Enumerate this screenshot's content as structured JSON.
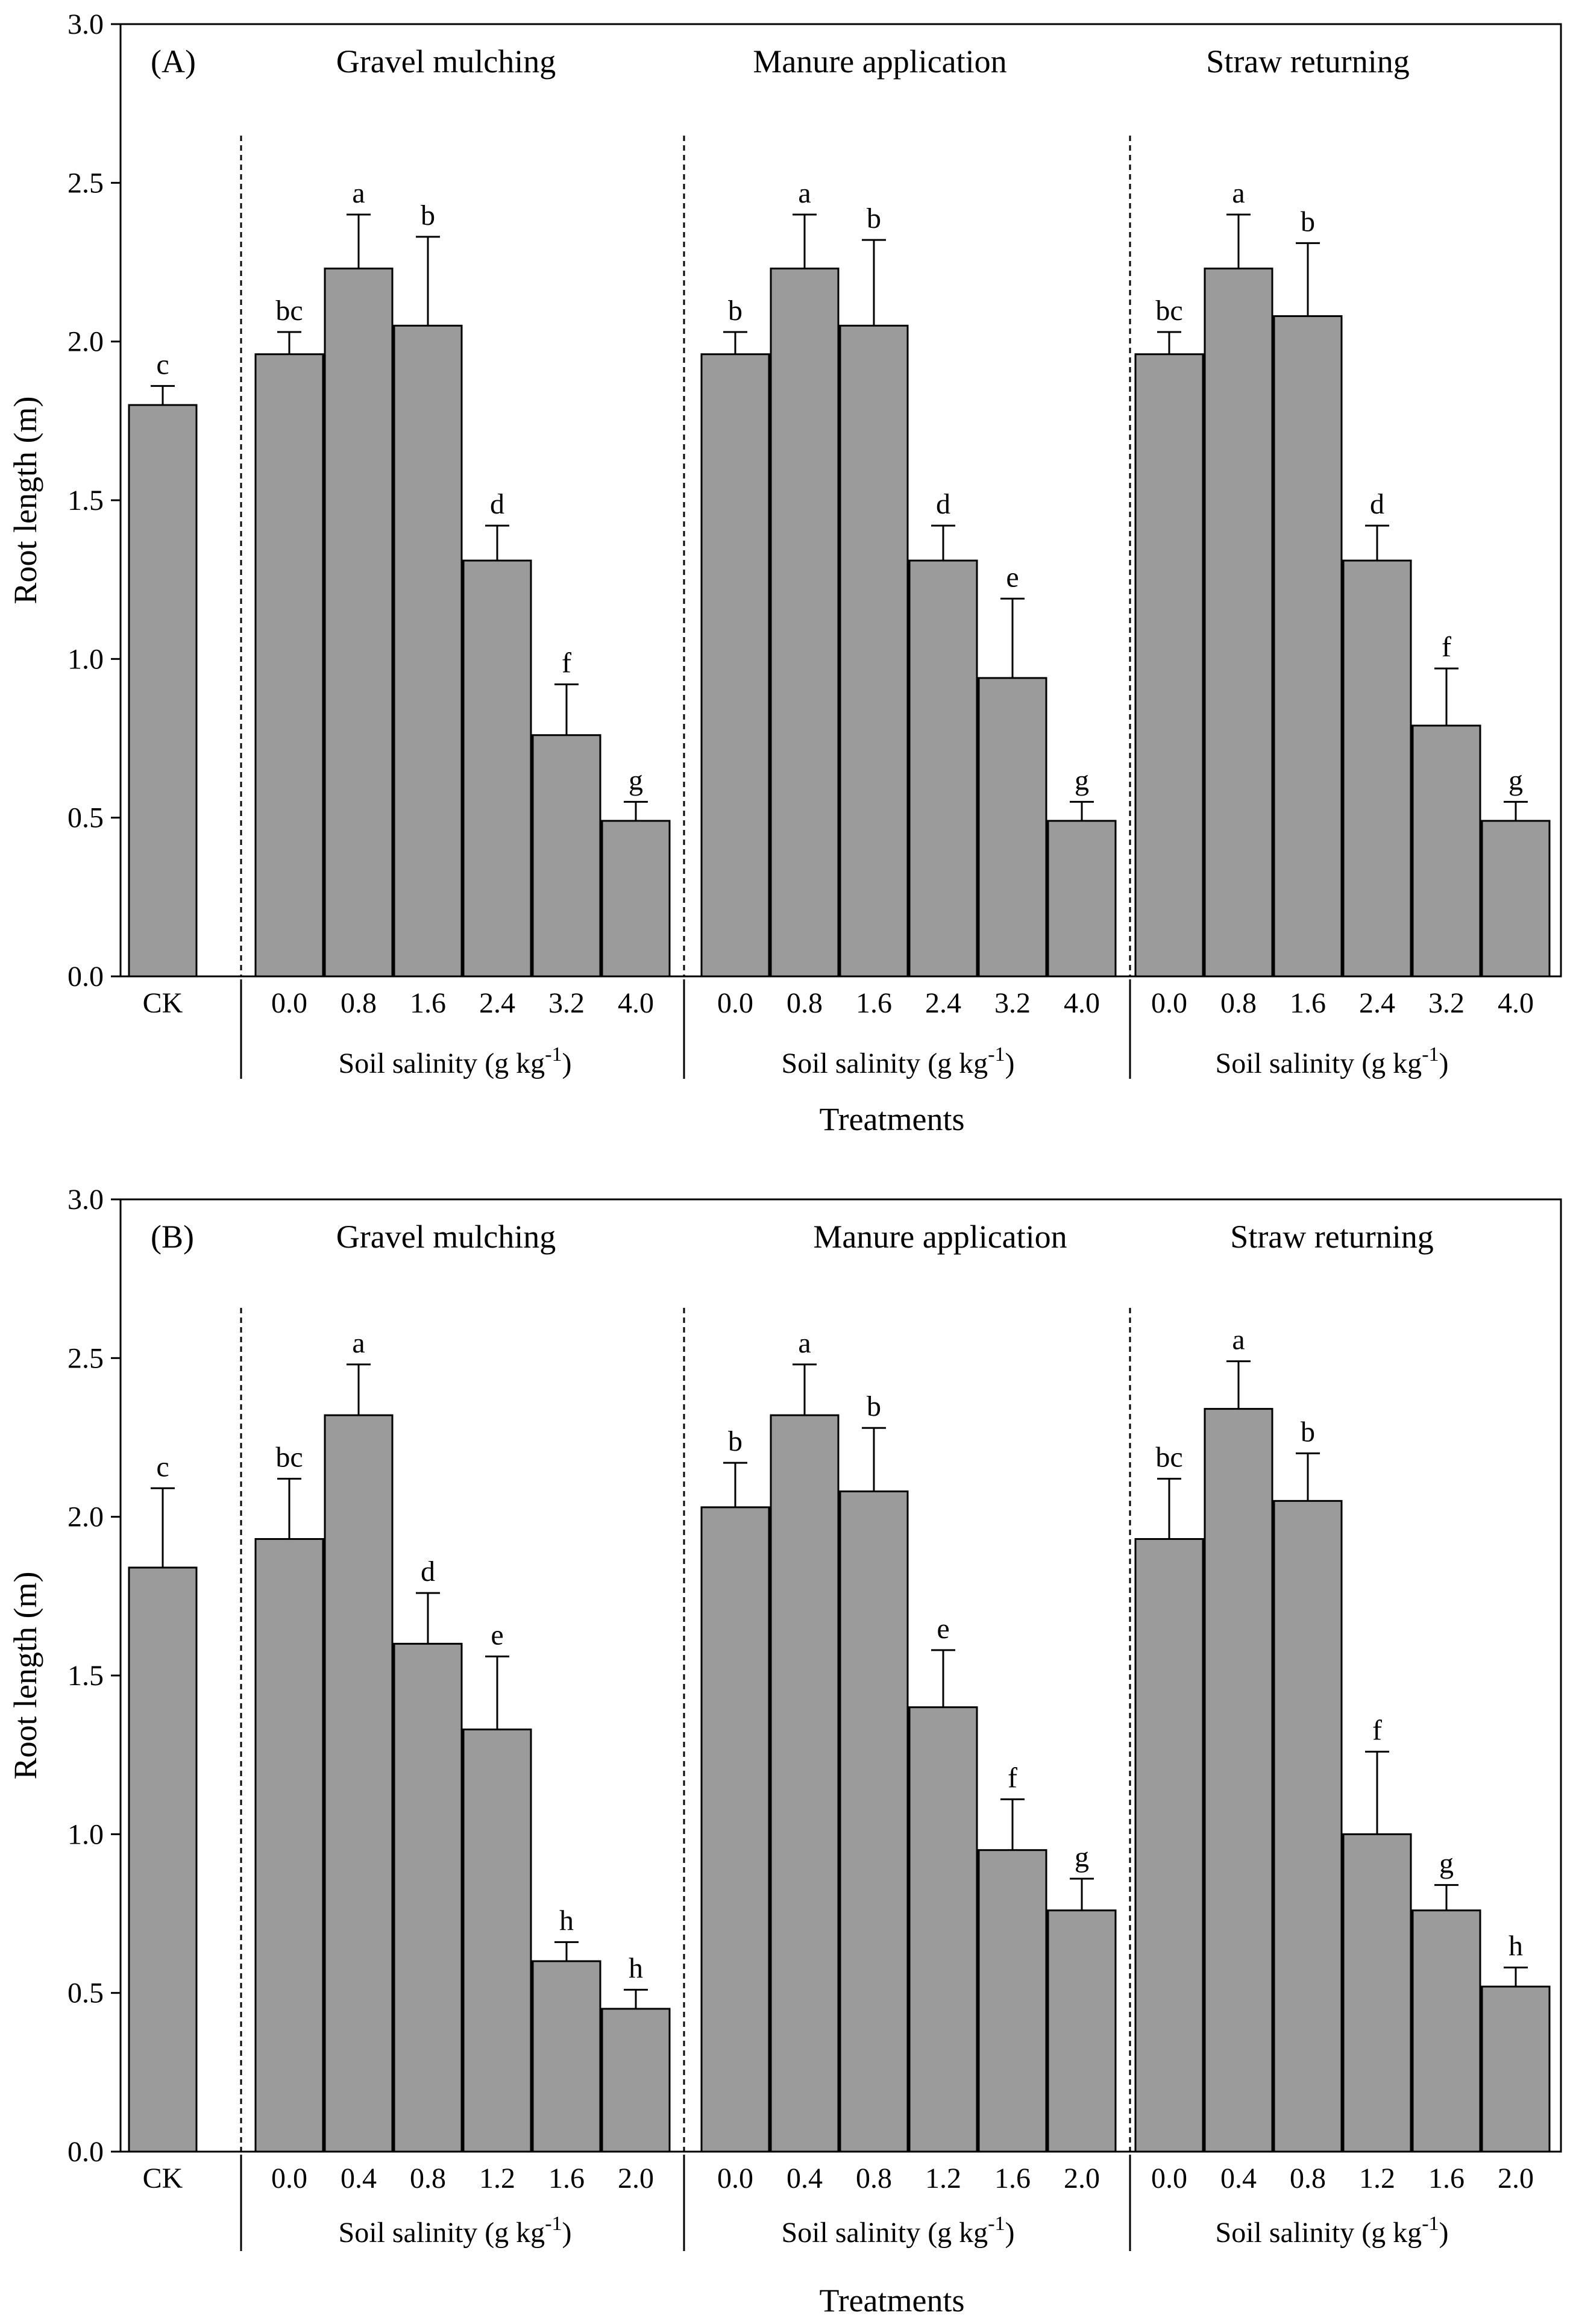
{
  "chart_data": [
    {
      "type": "bar",
      "panel_label": "(A)",
      "ylabel": "Root length (m)",
      "xlabel": "Treatments",
      "axis_label": "Soil salinity (g kg",
      "axis_label_sup": "-1",
      "axis_label_end": ")",
      "ylim": [
        0,
        3.0
      ],
      "yticks": [
        "0.0",
        "0.5",
        "1.0",
        "1.5",
        "2.0",
        "2.5",
        "3.0"
      ],
      "control": {
        "label": "CK",
        "value": 1.8,
        "error": 0.06,
        "letter": "c"
      },
      "groups": [
        {
          "name": "Gravel mulching",
          "categories": [
            "0.0",
            "0.8",
            "1.6",
            "2.4",
            "3.2",
            "4.0"
          ],
          "values": [
            1.96,
            2.23,
            2.05,
            1.31,
            0.76,
            0.49
          ],
          "errors": [
            0.07,
            0.17,
            0.28,
            0.11,
            0.16,
            0.06
          ],
          "letters": [
            "bc",
            "a",
            "b",
            "d",
            "f",
            "g"
          ]
        },
        {
          "name": "Manure application",
          "categories": [
            "0.0",
            "0.8",
            "1.6",
            "2.4",
            "3.2",
            "4.0"
          ],
          "values": [
            1.96,
            2.23,
            2.05,
            1.31,
            0.94,
            0.49
          ],
          "errors": [
            0.07,
            0.17,
            0.27,
            0.11,
            0.25,
            0.06
          ],
          "letters": [
            "b",
            "a",
            "b",
            "d",
            "e",
            "g"
          ]
        },
        {
          "name": "Straw returning",
          "categories": [
            "0.0",
            "0.8",
            "1.6",
            "2.4",
            "3.2",
            "4.0"
          ],
          "values": [
            1.96,
            2.23,
            2.08,
            1.31,
            0.79,
            0.49
          ],
          "errors": [
            0.07,
            0.17,
            0.23,
            0.11,
            0.18,
            0.06
          ],
          "letters": [
            "bc",
            "a",
            "b",
            "d",
            "f",
            "g"
          ]
        }
      ]
    },
    {
      "type": "bar",
      "panel_label": "(B)",
      "ylabel": "Root length (m)",
      "xlabel": "Treatments",
      "axis_label": "Soil salinity (g kg",
      "axis_label_sup": "-1",
      "axis_label_end": ")",
      "ylim": [
        0,
        3.0
      ],
      "yticks": [
        "0.0",
        "0.5",
        "1.0",
        "1.5",
        "2.0",
        "2.5",
        "3.0"
      ],
      "control": {
        "label": "CK",
        "value": 1.84,
        "error": 0.25,
        "letter": "c"
      },
      "groups": [
        {
          "name": "Gravel mulching",
          "categories": [
            "0.0",
            "0.4",
            "0.8",
            "1.2",
            "1.6",
            "2.0"
          ],
          "values": [
            1.93,
            2.32,
            1.6,
            1.33,
            0.6,
            0.45
          ],
          "errors": [
            0.19,
            0.16,
            0.16,
            0.23,
            0.06,
            0.06
          ],
          "letters": [
            "bc",
            "a",
            "d",
            "e",
            "h",
            "h"
          ]
        },
        {
          "name": "Manure application",
          "categories": [
            "0.0",
            "0.4",
            "0.8",
            "1.2",
            "1.6",
            "2.0"
          ],
          "values": [
            2.03,
            2.32,
            2.08,
            1.4,
            0.95,
            0.76
          ],
          "errors": [
            0.14,
            0.16,
            0.2,
            0.18,
            0.16,
            0.1
          ],
          "letters": [
            "b",
            "a",
            "b",
            "e",
            "f",
            "g"
          ]
        },
        {
          "name": "Straw returning",
          "categories": [
            "0.0",
            "0.4",
            "0.8",
            "1.2",
            "1.6",
            "2.0"
          ],
          "values": [
            1.93,
            2.34,
            2.05,
            1.0,
            0.76,
            0.52
          ],
          "errors": [
            0.19,
            0.15,
            0.15,
            0.26,
            0.08,
            0.06
          ],
          "letters": [
            "bc",
            "a",
            "b",
            "f",
            "g",
            "h"
          ]
        }
      ]
    }
  ]
}
